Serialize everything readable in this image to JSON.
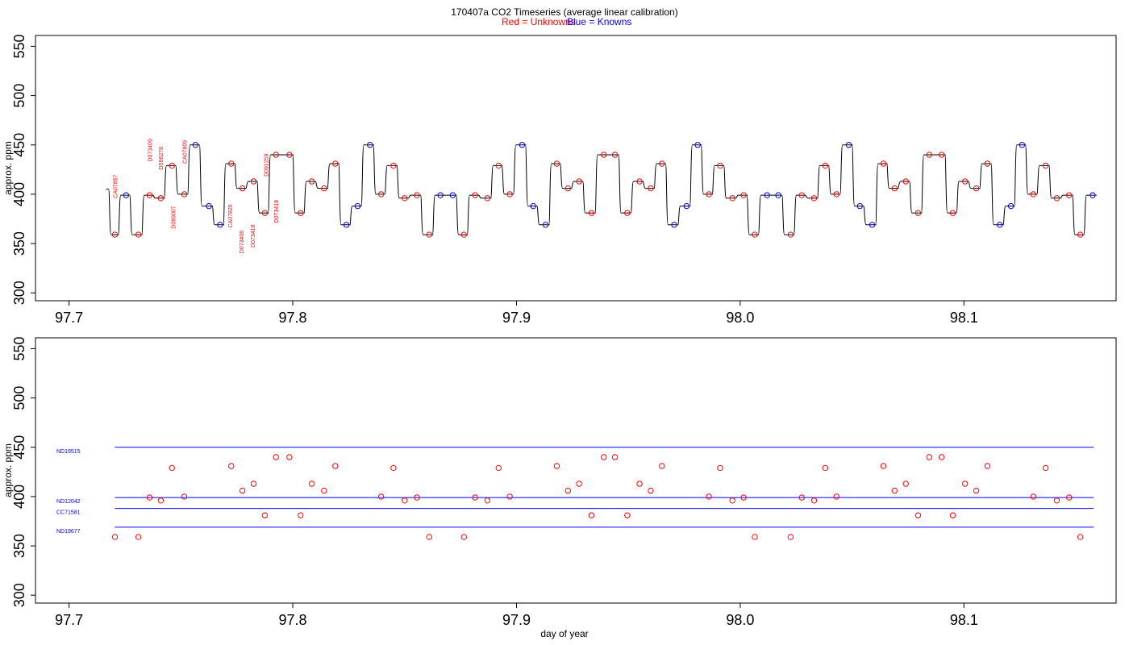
{
  "chart_data": {
    "title": "170407a   CO2 Timeseries (average linear calibration)",
    "legend": [
      {
        "text": "Red = Unknowns",
        "color": "#ff0000"
      },
      {
        "text": "Blue = Knowns",
        "color": "#0000ff"
      }
    ],
    "colors": {
      "unknown": "#ff0000",
      "known": "#0000ff",
      "trace": "#000000",
      "reference": "#0000ff"
    },
    "panels": [
      {
        "type": "line",
        "ylabel": "approx. ppm",
        "xlabel": "",
        "xlim": [
          97.685,
          98.168
        ],
        "ylim": [
          292,
          561
        ],
        "x_ticks": [
          97.7,
          97.8,
          97.9,
          98.0,
          98.1
        ],
        "x_tick_labels": [
          "97.7",
          "97.8",
          "97.9",
          "98.0",
          "98.1"
        ],
        "y_ticks": [
          300,
          350,
          400,
          450,
          500,
          550
        ],
        "y_tick_labels": [
          "300",
          "350",
          "400",
          "450",
          "500",
          "550"
        ],
        "trace_start": {
          "x": 97.7165,
          "y": 405
        },
        "series": [
          {
            "name": "unknowns",
            "color": "#ff0000",
            "points": [
              [
                97.7205,
                359
              ],
              [
                97.731,
                359
              ],
              [
                97.736,
                399
              ],
              [
                97.741,
                396
              ],
              [
                97.746,
                429
              ],
              [
                97.7515,
                400
              ],
              [
                97.7725,
                431
              ],
              [
                97.7775,
                406
              ],
              [
                97.7825,
                413
              ],
              [
                97.7875,
                381
              ],
              [
                97.7925,
                440
              ],
              [
                97.7985,
                440
              ],
              [
                97.8035,
                381
              ],
              [
                97.8085,
                413
              ],
              [
                97.814,
                406
              ],
              [
                97.819,
                431
              ],
              [
                97.8395,
                400
              ],
              [
                97.845,
                429
              ],
              [
                97.85,
                396
              ],
              [
                97.8555,
                399
              ],
              [
                97.861,
                359
              ],
              [
                97.8765,
                359
              ],
              [
                97.8815,
                399
              ],
              [
                97.887,
                396
              ],
              [
                97.892,
                429
              ],
              [
                97.897,
                400
              ],
              [
                97.918,
                431
              ],
              [
                97.923,
                406
              ],
              [
                97.928,
                413
              ],
              [
                97.9335,
                381
              ],
              [
                97.939,
                440
              ],
              [
                97.944,
                440
              ],
              [
                97.9495,
                381
              ],
              [
                97.955,
                413
              ],
              [
                97.96,
                406
              ],
              [
                97.965,
                431
              ],
              [
                97.986,
                400
              ],
              [
                97.991,
                429
              ],
              [
                97.9965,
                396
              ],
              [
                98.0015,
                399
              ],
              [
                98.0065,
                359
              ],
              [
                98.0225,
                359
              ],
              [
                98.0275,
                399
              ],
              [
                98.033,
                396
              ],
              [
                98.038,
                429
              ],
              [
                98.043,
                400
              ],
              [
                98.064,
                431
              ],
              [
                98.069,
                406
              ],
              [
                98.074,
                413
              ],
              [
                98.0795,
                381
              ],
              [
                98.0845,
                440
              ],
              [
                98.09,
                440
              ],
              [
                98.095,
                381
              ],
              [
                98.1005,
                413
              ],
              [
                98.1055,
                406
              ],
              [
                98.1105,
                431
              ],
              [
                98.131,
                400
              ],
              [
                98.1365,
                429
              ],
              [
                98.1415,
                396
              ],
              [
                98.147,
                399
              ],
              [
                98.152,
                359
              ]
            ]
          },
          {
            "name": "knowns",
            "color": "#0000ff",
            "points": [
              [
                97.7255,
                399
              ],
              [
                97.7565,
                450
              ],
              [
                97.7625,
                388
              ],
              [
                97.7675,
                369
              ],
              [
                97.824,
                369
              ],
              [
                97.829,
                388
              ],
              [
                97.8345,
                450
              ],
              [
                97.866,
                399
              ],
              [
                97.8715,
                399
              ],
              [
                97.9025,
                450
              ],
              [
                97.9075,
                388
              ],
              [
                97.913,
                369
              ],
              [
                97.9705,
                369
              ],
              [
                97.976,
                388
              ],
              [
                97.981,
                450
              ],
              [
                98.012,
                399
              ],
              [
                98.017,
                399
              ],
              [
                98.0485,
                450
              ],
              [
                98.0535,
                388
              ],
              [
                98.059,
                369
              ],
              [
                98.116,
                369
              ],
              [
                98.121,
                388
              ],
              [
                98.126,
                450
              ],
              [
                98.1575,
                399
              ]
            ]
          }
        ],
        "annotations": [
          {
            "text": "CA07857",
            "x": 97.7215,
            "y": 396
          },
          {
            "text": "D073409",
            "x": 97.737,
            "y": 433
          },
          {
            "text": "D596278",
            "x": 97.742,
            "y": 425
          },
          {
            "text": "D089007",
            "x": 97.7475,
            "y": 365
          },
          {
            "text": "CA07809",
            "x": 97.7525,
            "y": 431
          },
          {
            "text": "CA07825",
            "x": 97.773,
            "y": 366
          },
          {
            "text": "D073406",
            "x": 97.778,
            "y": 340
          },
          {
            "text": "D073418",
            "x": 97.783,
            "y": 346
          },
          {
            "text": "D091259",
            "x": 97.789,
            "y": 418
          },
          {
            "text": "D073419",
            "x": 97.7935,
            "y": 371
          }
        ]
      },
      {
        "type": "scatter",
        "ylabel": "approx. ppm",
        "xlabel": "day of year",
        "xlim": [
          97.685,
          98.168
        ],
        "ylim": [
          292,
          561
        ],
        "x_ticks": [
          97.7,
          97.8,
          97.9,
          98.0,
          98.1
        ],
        "x_tick_labels": [
          "97.7",
          "97.8",
          "97.9",
          "98.0",
          "98.1"
        ],
        "y_ticks": [
          300,
          350,
          400,
          450,
          500,
          550
        ],
        "y_tick_labels": [
          "300",
          "350",
          "400",
          "450",
          "500",
          "550"
        ],
        "references": [
          {
            "label": "ND19515",
            "y": 450,
            "x": [
              97.7205,
              98.158
            ]
          },
          {
            "label": "ND12042",
            "y": 399,
            "x": [
              97.7205,
              98.158
            ]
          },
          {
            "label": "CC71581",
            "y": 388,
            "x": [
              97.7205,
              98.158
            ]
          },
          {
            "label": "ND19677",
            "y": 369,
            "x": [
              97.7205,
              98.158
            ]
          }
        ]
      }
    ]
  }
}
